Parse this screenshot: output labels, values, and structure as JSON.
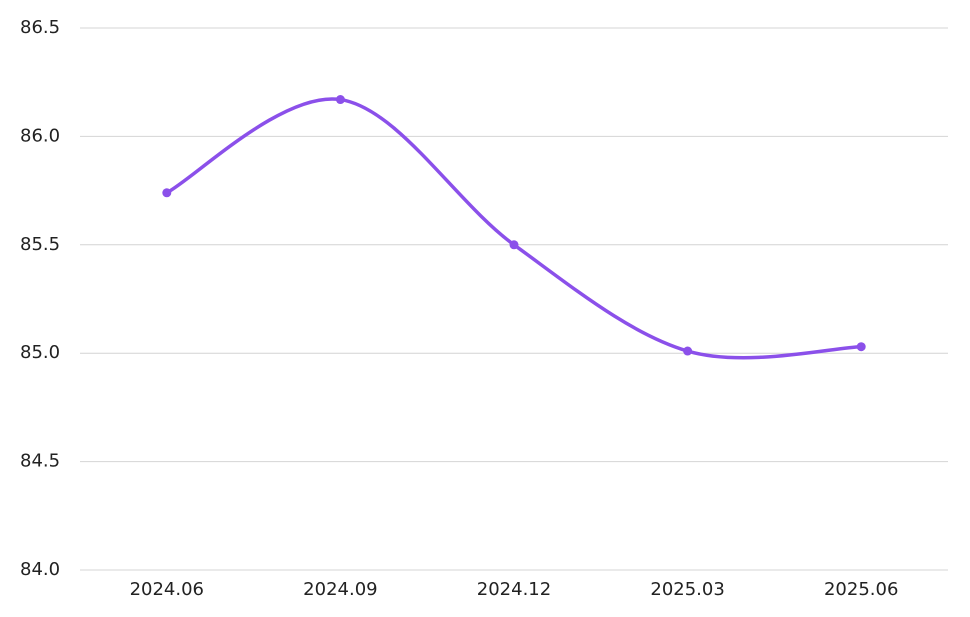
{
  "chart_data": {
    "type": "line",
    "categories": [
      "2024.06",
      "2024.09",
      "2024.12",
      "2025.03",
      "2025.06"
    ],
    "series": [
      {
        "color": "#8b50ea",
        "values": [
          85.74,
          86.17,
          85.5,
          85.01,
          85.03
        ]
      }
    ],
    "ylim": [
      84,
      86.5
    ],
    "yticks": [
      {
        "value": 84,
        "label": "84.0"
      },
      84.5,
      {
        "value": 85,
        "label": "85.0"
      },
      85.5,
      {
        "value": 86,
        "label": "86.0"
      },
      86.5
    ],
    "grid": true,
    "smooth": true
  }
}
